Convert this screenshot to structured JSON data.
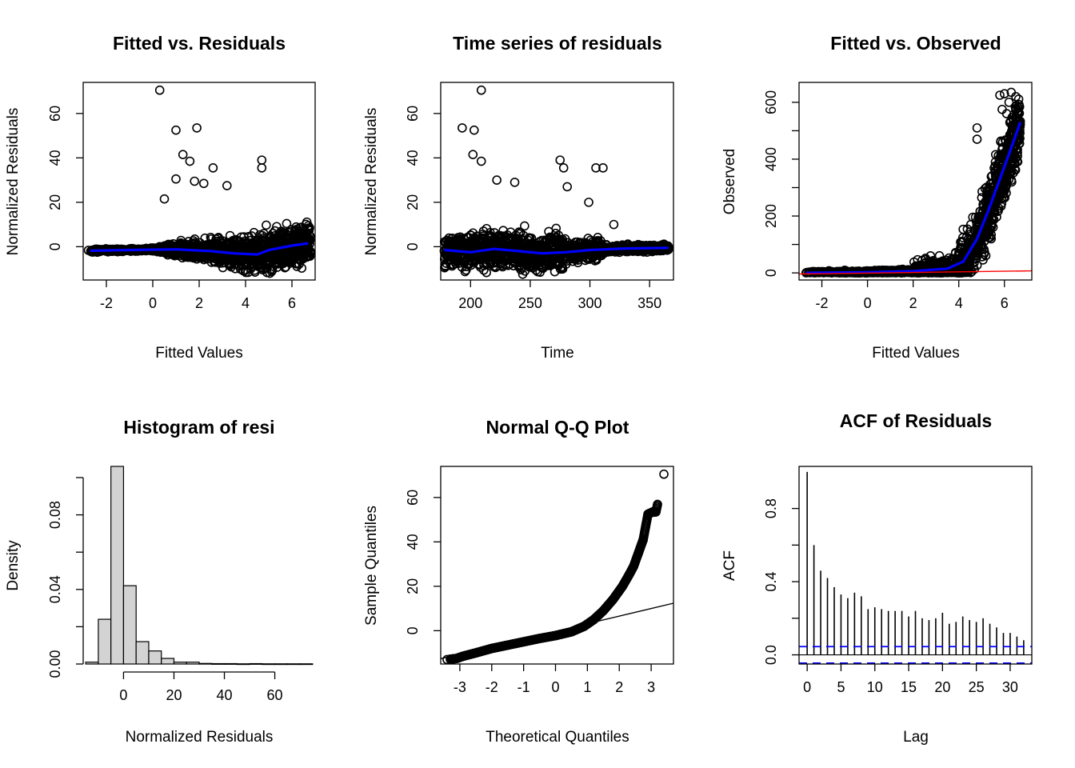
{
  "chart_data": [
    {
      "type": "scatter",
      "title": "Fitted vs. Residuals",
      "xlabel": "Fitted Values",
      "ylabel": "Normalized Residuals",
      "xlim": [
        -3,
        7
      ],
      "ylim": [
        -15,
        74
      ],
      "xticks": [
        -2,
        0,
        2,
        4,
        6
      ],
      "yticks": [
        0,
        20,
        40,
        60
      ],
      "xtick_labels": [
        "-2",
        "0",
        "2",
        "4",
        "6"
      ],
      "ytick_labels": [
        "0",
        "20",
        "40",
        "60"
      ],
      "outliers": [
        [
          0.3,
          70.5
        ],
        [
          1.0,
          52.5
        ],
        [
          1.9,
          53.5
        ],
        [
          1.3,
          41.5
        ],
        [
          1.6,
          38.5
        ],
        [
          4.7,
          39.0
        ],
        [
          4.7,
          35.5
        ],
        [
          2.6,
          35.5
        ],
        [
          3.2,
          27.5
        ],
        [
          1.0,
          30.5
        ],
        [
          0.5,
          21.5
        ],
        [
          1.8,
          29.5
        ],
        [
          2.2,
          28.5
        ]
      ],
      "cloud": {
        "description": "dense residual cloud",
        "x_range": [
          -2.8,
          6.8
        ],
        "center": -1.5,
        "spread_max": 11
      },
      "smooth_line": {
        "color": "#0000ff",
        "points": [
          [
            -2.7,
            -1.8
          ],
          [
            -1,
            -1.5
          ],
          [
            1,
            -1.2
          ],
          [
            2.5,
            -2.0
          ],
          [
            3.5,
            -3.0
          ],
          [
            4.5,
            -3.5
          ],
          [
            5,
            -1.5
          ],
          [
            6,
            0.5
          ],
          [
            6.7,
            1.5
          ]
        ]
      }
    },
    {
      "type": "scatter",
      "title": "Time series of residuals",
      "xlabel": "Time",
      "ylabel": "Normalized Residuals",
      "xlim": [
        175,
        370
      ],
      "ylim": [
        -15,
        74
      ],
      "xticks": [
        200,
        250,
        300,
        350
      ],
      "yticks": [
        0,
        20,
        40,
        60
      ],
      "xtick_labels": [
        "200",
        "250",
        "300",
        "350"
      ],
      "ytick_labels": [
        "0",
        "20",
        "40",
        "60"
      ],
      "outliers": [
        [
          209,
          70.5
        ],
        [
          193,
          53.5
        ],
        [
          203,
          52.5
        ],
        [
          202,
          41.5
        ],
        [
          209,
          38.5
        ],
        [
          275,
          39.0
        ],
        [
          278,
          35.5
        ],
        [
          305,
          35.5
        ],
        [
          311,
          35.5
        ],
        [
          222,
          30.0
        ],
        [
          237,
          29.0
        ],
        [
          281,
          27.0
        ],
        [
          299,
          20.0
        ],
        [
          320,
          10.0
        ]
      ],
      "smooth_line": {
        "color": "#0000ff",
        "points": [
          [
            178,
            -1.5
          ],
          [
            200,
            -2.5
          ],
          [
            220,
            -1.0
          ],
          [
            240,
            -2.0
          ],
          [
            260,
            -3.0
          ],
          [
            280,
            -2.5
          ],
          [
            300,
            -1.5
          ],
          [
            330,
            -0.8
          ],
          [
            366,
            -0.5
          ]
        ]
      }
    },
    {
      "type": "scatter",
      "title": "Fitted vs. Observed",
      "xlabel": "Fitted Values",
      "ylabel": "Observed",
      "xlim": [
        -3,
        7.2
      ],
      "ylim": [
        -25,
        670
      ],
      "xticks": [
        -2,
        0,
        2,
        4,
        6
      ],
      "yticks": [
        0,
        200,
        400,
        600
      ],
      "yticks_minor": [
        100,
        300,
        500
      ],
      "xtick_labels": [
        "-2",
        "0",
        "2",
        "4",
        "6"
      ],
      "ytick_labels": [
        "0",
        "200",
        "400",
        "600"
      ],
      "outliers": [
        [
          5.8,
          625
        ],
        [
          6.0,
          630
        ],
        [
          6.3,
          635
        ],
        [
          6.5,
          620
        ],
        [
          6.2,
          600
        ],
        [
          6.6,
          570
        ],
        [
          5.9,
          575
        ],
        [
          6.1,
          560
        ],
        [
          4.8,
          510
        ],
        [
          4.8,
          470
        ]
      ],
      "smooth_line": {
        "color": "#0000ff",
        "points": [
          [
            -2.7,
            0
          ],
          [
            0,
            2
          ],
          [
            2,
            6
          ],
          [
            3.5,
            15
          ],
          [
            4.2,
            40
          ],
          [
            4.8,
            120
          ],
          [
            5.3,
            220
          ],
          [
            5.8,
            330
          ],
          [
            6.3,
            440
          ],
          [
            6.7,
            530
          ]
        ]
      },
      "reference_line": {
        "color": "#ff0000",
        "points": [
          [
            -3,
            -4
          ],
          [
            7.2,
            7
          ]
        ]
      }
    },
    {
      "type": "bar",
      "title": "Histogram of resi",
      "xlabel": "Normalized Residuals",
      "ylabel": "Density",
      "xlim": [
        -16,
        76
      ],
      "ylim": [
        0,
        0.106
      ],
      "xticks": [
        0,
        20,
        40,
        60
      ],
      "yticks": [
        0,
        0.04,
        0.08
      ],
      "yticks_minor": [
        0.02,
        0.06,
        0.1
      ],
      "xtick_labels": [
        "0",
        "20",
        "40",
        "60"
      ],
      "ytick_labels": [
        "0.00",
        "0.04",
        "0.08"
      ],
      "bin_width": 5,
      "bins": [
        [
          -15,
          0.001
        ],
        [
          -10,
          0.024
        ],
        [
          -5,
          0.106
        ],
        [
          0,
          0.042
        ],
        [
          5,
          0.012
        ],
        [
          10,
          0.007
        ],
        [
          15,
          0.003
        ],
        [
          20,
          0.001
        ],
        [
          25,
          0.001
        ],
        [
          30,
          0.0003
        ],
        [
          35,
          0.0002
        ],
        [
          40,
          0.0002
        ],
        [
          45,
          0.0001
        ],
        [
          50,
          0.0002
        ],
        [
          55,
          0.0001
        ],
        [
          60,
          0.0001
        ],
        [
          65,
          0.0001
        ],
        [
          70,
          0.0001
        ]
      ],
      "fill": "#d3d3d3"
    },
    {
      "type": "scatter",
      "title": "Normal Q-Q Plot",
      "xlabel": "Theoretical Quantiles",
      "ylabel": "Sample Quantiles",
      "xlim": [
        -3.6,
        3.7
      ],
      "ylim": [
        -15,
        74
      ],
      "xticks": [
        -3,
        -2,
        -1,
        0,
        1,
        2,
        3
      ],
      "yticks": [
        0,
        20,
        40,
        60
      ],
      "xtick_labels": [
        "-3",
        "-2",
        "-1",
        "0",
        "1",
        "2",
        "3"
      ],
      "ytick_labels": [
        "0",
        "20",
        "40",
        "60"
      ],
      "quantile_points": [
        [
          -3.4,
          -13
        ],
        [
          -3.1,
          -12.5
        ],
        [
          -2.9,
          -11.5
        ],
        [
          -2.5,
          -10
        ],
        [
          -2,
          -8
        ],
        [
          -1.5,
          -6.5
        ],
        [
          -1,
          -5
        ],
        [
          -0.5,
          -3.5
        ],
        [
          0,
          -2.2
        ],
        [
          0.5,
          -0.5
        ],
        [
          0.9,
          2
        ],
        [
          1.2,
          5
        ],
        [
          1.5,
          9
        ],
        [
          1.8,
          14
        ],
        [
          2.1,
          20
        ],
        [
          2.3,
          25
        ],
        [
          2.45,
          29
        ],
        [
          2.6,
          35
        ],
        [
          2.75,
          41
        ],
        [
          2.9,
          52.5
        ],
        [
          3.05,
          53.5
        ],
        [
          3.15,
          53.5
        ],
        [
          3.4,
          70.5
        ]
      ],
      "reference_line": {
        "color": "#000000",
        "points": [
          [
            -3.6,
            -12.6
          ],
          [
            3.7,
            12.4
          ]
        ]
      }
    },
    {
      "type": "bar",
      "title": "ACF of Residuals",
      "xlabel": "Lag",
      "ylabel": "ACF",
      "xlim": [
        -1.2,
        33.2
      ],
      "ylim": [
        -0.05,
        1.03
      ],
      "xticks": [
        0,
        5,
        10,
        15,
        20,
        25,
        30
      ],
      "yticks": [
        0,
        0.4,
        0.8
      ],
      "yticks_minor": [
        0.2,
        0.6
      ],
      "xtick_labels": [
        "0",
        "5",
        "10",
        "15",
        "20",
        "25",
        "30"
      ],
      "ytick_labels": [
        "0.0",
        "0.4",
        "0.8"
      ],
      "lags": [
        0,
        1,
        2,
        3,
        4,
        5,
        6,
        7,
        8,
        9,
        10,
        11,
        12,
        13,
        14,
        15,
        16,
        17,
        18,
        19,
        20,
        21,
        22,
        23,
        24,
        25,
        26,
        27,
        28,
        29,
        30,
        31,
        32
      ],
      "values": [
        1.0,
        0.6,
        0.46,
        0.42,
        0.37,
        0.33,
        0.31,
        0.34,
        0.32,
        0.25,
        0.26,
        0.25,
        0.24,
        0.24,
        0.24,
        0.21,
        0.24,
        0.2,
        0.19,
        0.2,
        0.23,
        0.17,
        0.18,
        0.21,
        0.19,
        0.18,
        0.2,
        0.17,
        0.15,
        0.12,
        0.12,
        0.1,
        0.08
      ],
      "confidence_band": 0.045,
      "band_color": "#0000ff"
    }
  ]
}
